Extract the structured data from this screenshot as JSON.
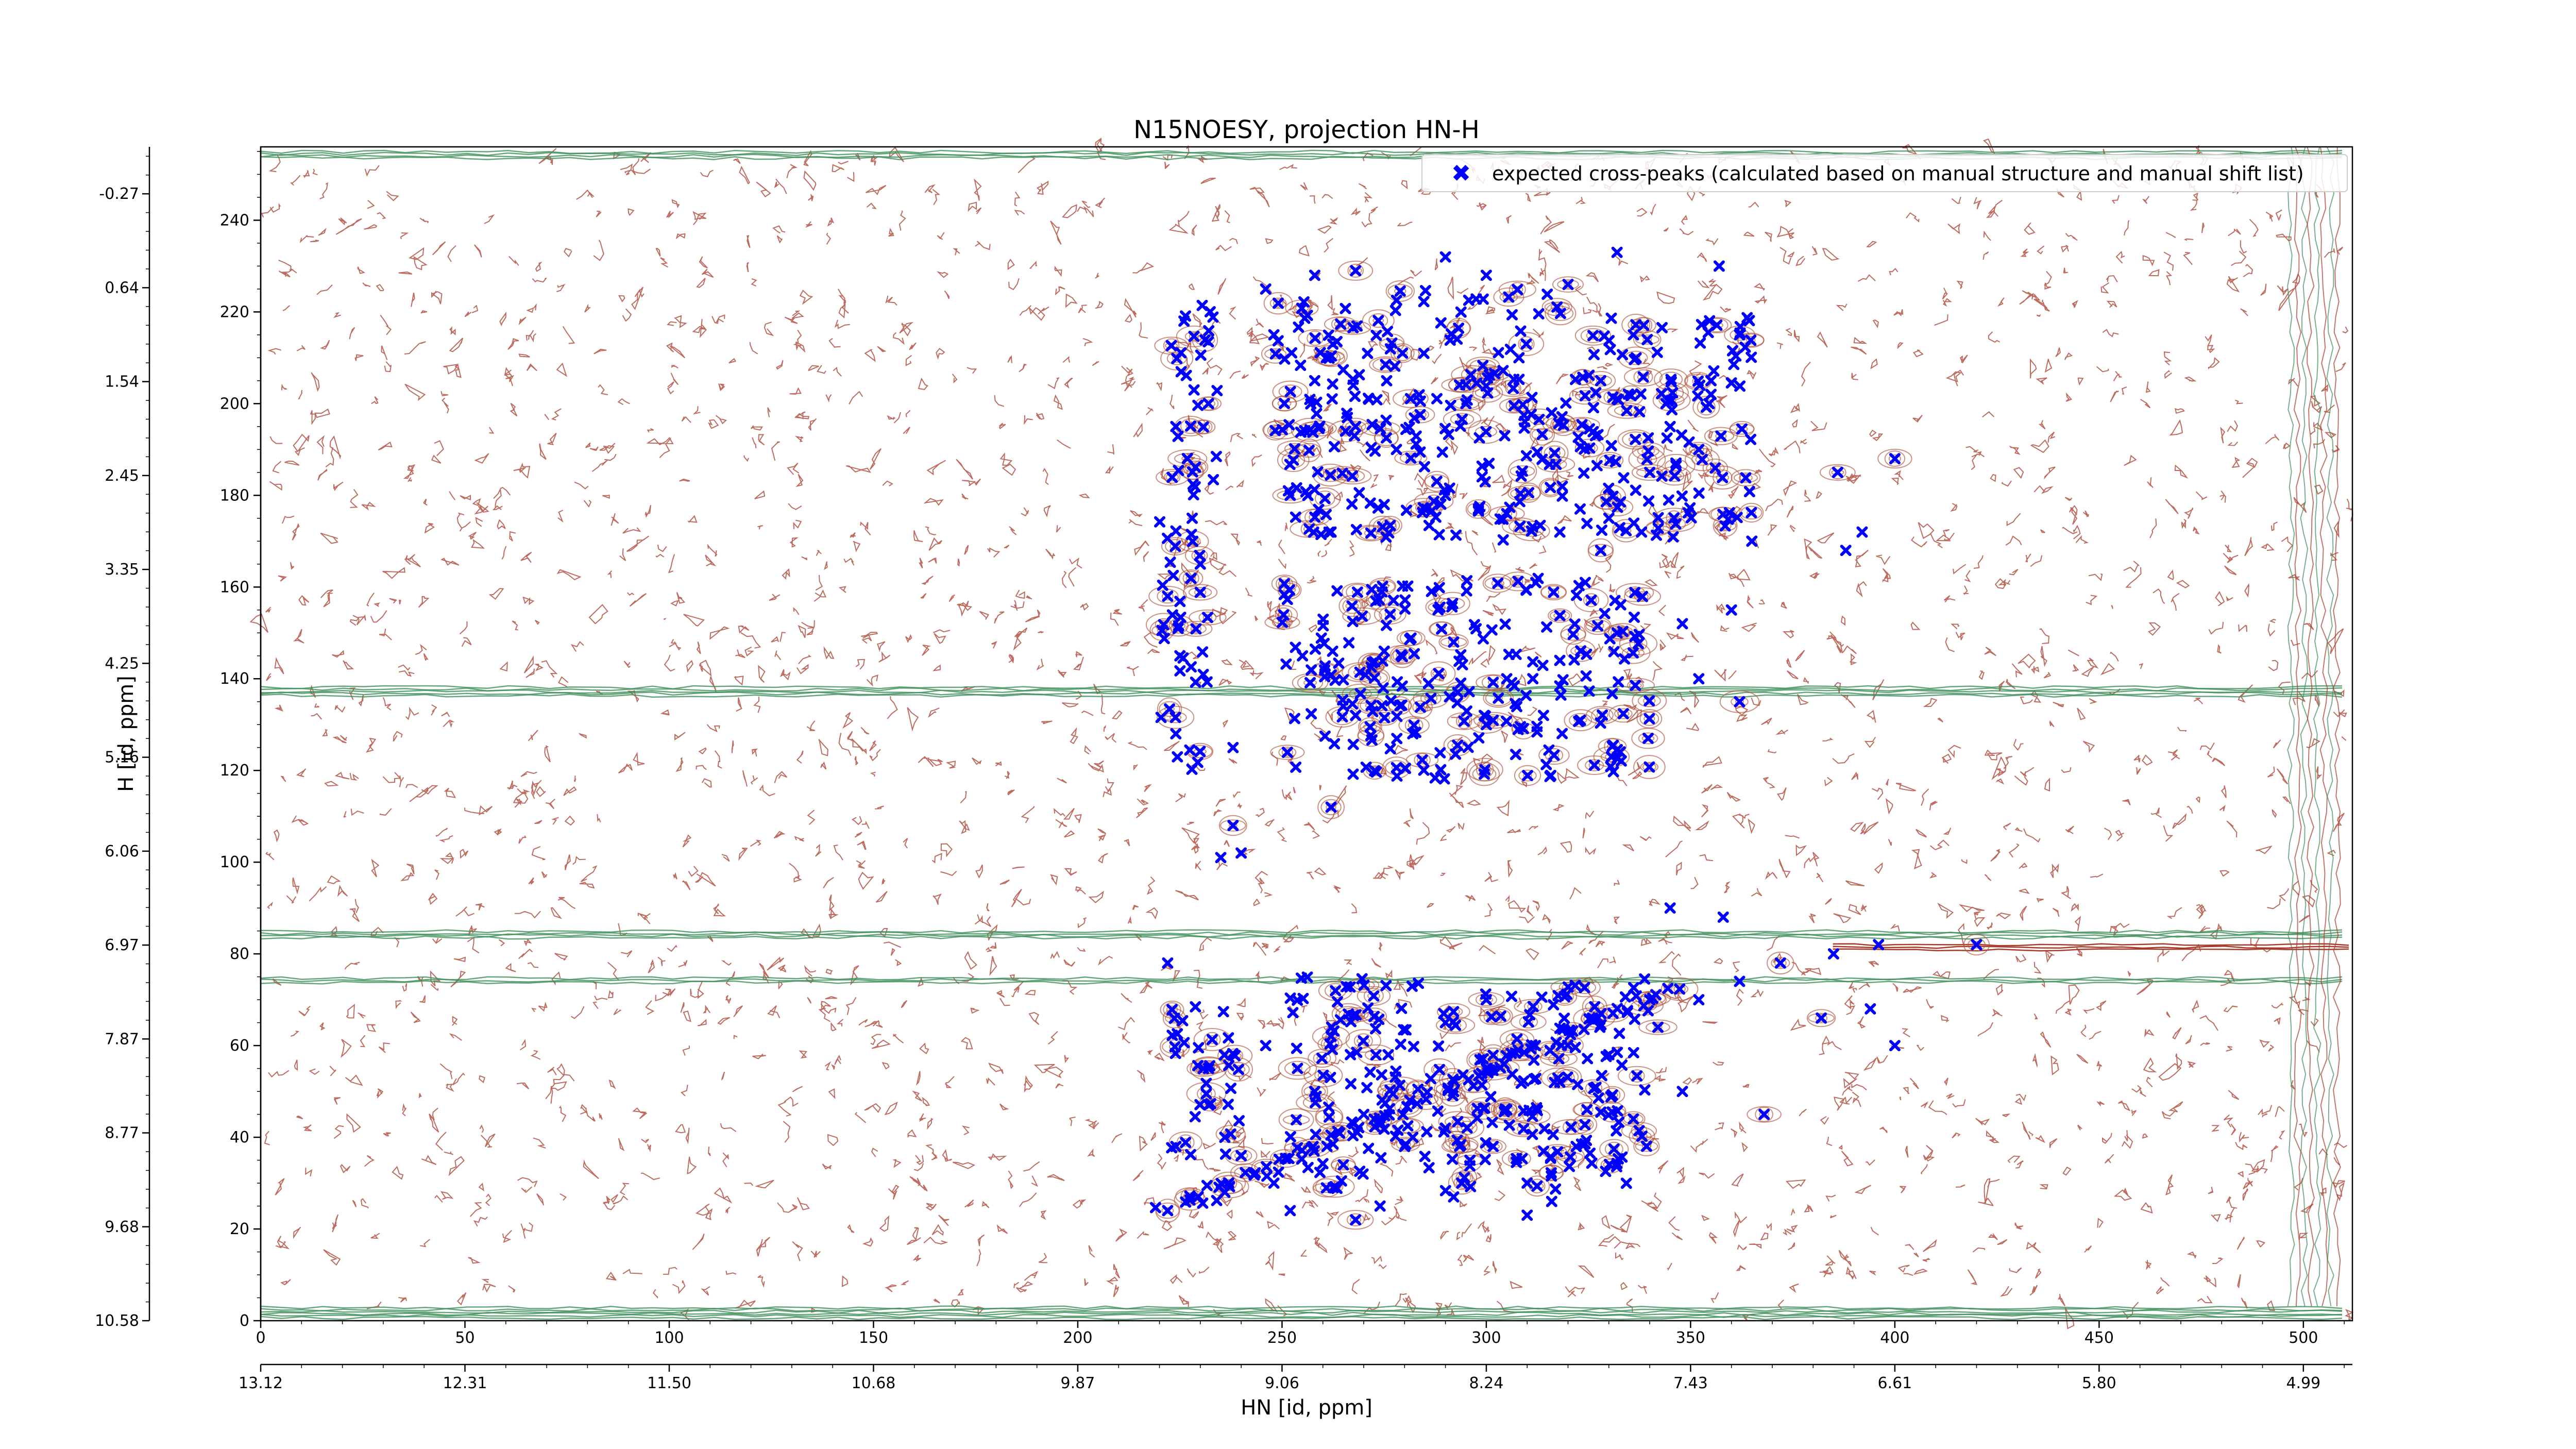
{
  "chart_data": {
    "type": "scatter",
    "title": "N15NOESY, projection HN-H",
    "xlabel": "HN [id, ppm]",
    "ylabel": "H [id, ppm]",
    "xlim": [
      0,
      512
    ],
    "ylim": [
      0,
      256
    ],
    "x_ticks": [
      0,
      50,
      100,
      150,
      200,
      250,
      300,
      350,
      400,
      450,
      500
    ],
    "y_ticks": [
      0,
      20,
      40,
      60,
      80,
      100,
      120,
      140,
      160,
      180,
      200,
      220,
      240
    ],
    "x_ppm_labels": [
      "13.12",
      "12.31",
      "11.50",
      "10.68",
      "9.87",
      "9.06",
      "8.24",
      "7.43",
      "6.61",
      "5.80",
      "4.99"
    ],
    "y_ppm_labels": [
      "10.58",
      "9.68",
      "8.77",
      "7.87",
      "6.97",
      "6.06",
      "5.16",
      "4.25",
      "3.35",
      "2.45",
      "1.54",
      "0.64",
      "-0.27"
    ],
    "legend": {
      "placement": "top-right",
      "entries": [
        {
          "label": "expected cross-peaks (calculated based on manual structure and manual shift list)",
          "marker": "x",
          "color": "#0000ff"
        }
      ]
    },
    "series": [
      {
        "name": "expected cross-peaks (calculated based on manual structure and manual shift list)",
        "color": "#0000ff",
        "marker": "x",
        "clusters": [
          {
            "x": [
              222,
              235
            ],
            "y": [
              180,
              222
            ]
          },
          {
            "x": [
              248,
              320
            ],
            "y": [
              170,
              225
            ]
          },
          {
            "x": [
              320,
              365
            ],
            "y": [
              170,
              220
            ]
          },
          {
            "x": [
              250,
              340
            ],
            "y": [
              118,
              162
            ]
          },
          {
            "x": [
              220,
              232
            ],
            "y": [
              120,
              175
            ]
          },
          {
            "x": [
              250,
              340
            ],
            "y": [
              28,
              75
            ]
          },
          {
            "x": [
              222,
              240
            ],
            "y": [
              35,
              70
            ]
          }
        ],
        "diagonal": {
          "from": [
            222,
            24
          ],
          "to": [
            345,
            72
          ]
        },
        "points": [
          [
            222,
            24
          ],
          [
            236,
            28
          ],
          [
            248,
            30
          ],
          [
            265,
            34
          ],
          [
            280,
            38
          ],
          [
            290,
            42
          ],
          [
            305,
            46
          ],
          [
            318,
            52
          ],
          [
            330,
            58
          ],
          [
            342,
            64
          ],
          [
            352,
            70
          ],
          [
            362,
            74
          ],
          [
            372,
            78
          ],
          [
            385,
            80
          ],
          [
            396,
            82
          ],
          [
            420,
            82
          ],
          [
            345,
            90
          ],
          [
            358,
            88
          ],
          [
            382,
            66
          ],
          [
            394,
            68
          ],
          [
            400,
            60
          ],
          [
            368,
            45
          ],
          [
            292,
            27
          ],
          [
            310,
            23
          ],
          [
            268,
            22
          ],
          [
            224,
            128
          ],
          [
            238,
            125
          ],
          [
            238,
            108
          ],
          [
            235,
            101
          ],
          [
            240,
            102
          ],
          [
            262,
            112
          ],
          [
            255,
            145
          ],
          [
            275,
            146
          ],
          [
            292,
            148
          ],
          [
            305,
            140
          ],
          [
            318,
            144
          ],
          [
            332,
            150
          ],
          [
            348,
            152
          ],
          [
            360,
            155
          ],
          [
            362,
            135
          ],
          [
            352,
            140
          ],
          [
            314,
            132
          ],
          [
            300,
            130
          ],
          [
            282,
            128
          ],
          [
            268,
            132
          ],
          [
            328,
            168
          ],
          [
            338,
            172
          ],
          [
            365,
            170
          ],
          [
            386,
            185
          ],
          [
            392,
            172
          ],
          [
            388,
            168
          ],
          [
            400,
            188
          ],
          [
            246,
            225
          ],
          [
            258,
            228
          ],
          [
            268,
            229
          ],
          [
            290,
            232
          ],
          [
            300,
            228
          ],
          [
            320,
            226
          ],
          [
            332,
            233
          ],
          [
            357,
            230
          ],
          [
            362,
            215
          ],
          [
            355,
            205
          ],
          [
            345,
            195
          ],
          [
            340,
            185
          ],
          [
            330,
            175
          ],
          [
            318,
            172
          ],
          [
            305,
            176
          ],
          [
            290,
            180
          ],
          [
            278,
            190
          ],
          [
            268,
            195
          ],
          [
            258,
            205
          ],
          [
            248,
            215
          ],
          [
            252,
            180
          ],
          [
            262,
            172
          ],
          [
            275,
            178
          ],
          [
            295,
            200
          ],
          [
            308,
            210
          ],
          [
            316,
            198
          ],
          [
            328,
            205
          ],
          [
            336,
            215
          ],
          [
            344,
            200
          ],
          [
            352,
            190
          ],
          [
            224,
            195
          ],
          [
            226,
            218
          ],
          [
            232,
            200
          ],
          [
            228,
            175
          ],
          [
            230,
            165
          ],
          [
            222,
            158
          ],
          [
            225,
            145
          ],
          [
            246,
            60
          ],
          [
            262,
            62
          ],
          [
            276,
            58
          ],
          [
            290,
            65
          ],
          [
            300,
            70
          ],
          [
            312,
            60
          ],
          [
            326,
            66
          ],
          [
            340,
            70
          ],
          [
            300,
            55
          ],
          [
            292,
            50
          ],
          [
            258,
            50
          ],
          [
            270,
            45
          ],
          [
            282,
            40
          ],
          [
            296,
            35
          ],
          [
            310,
            30
          ],
          [
            322,
            38
          ],
          [
            336,
            44
          ],
          [
            348,
            50
          ],
          [
            222,
            78
          ],
          [
            232,
            55
          ],
          [
            236,
            40
          ],
          [
            224,
            38
          ],
          [
            240,
            36
          ],
          [
            252,
            24
          ],
          [
            274,
            25
          ],
          [
            294,
            30
          ],
          [
            316,
            26
          ]
        ]
      }
    ]
  }
}
